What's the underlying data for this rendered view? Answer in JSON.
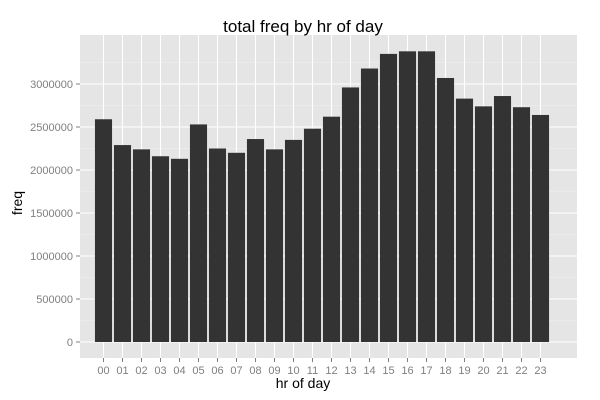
{
  "chart_data": {
    "type": "bar",
    "title": "total freq by hr of day",
    "xlabel": "hr of day",
    "ylabel": "freq",
    "categories": [
      "00",
      "01",
      "02",
      "03",
      "04",
      "05",
      "06",
      "07",
      "08",
      "09",
      "10",
      "11",
      "12",
      "13",
      "14",
      "15",
      "16",
      "17",
      "18",
      "19",
      "20",
      "21",
      "22",
      "23"
    ],
    "values": [
      2590000,
      2290000,
      2240000,
      2160000,
      2130000,
      2530000,
      2250000,
      2200000,
      2360000,
      2240000,
      2350000,
      2480000,
      2620000,
      2960000,
      3180000,
      3350000,
      3380000,
      3380000,
      3070000,
      2830000,
      2740000,
      2860000,
      2730000,
      2640000
    ],
    "ylim": [
      0,
      3450000
    ],
    "yticks": [
      0,
      500000,
      1000000,
      1500000,
      2000000,
      2500000,
      3000000
    ],
    "ytick_labels": [
      "0",
      "500000",
      "1000000",
      "1500000",
      "2000000",
      "2500000",
      "3000000"
    ],
    "grid": true,
    "colors": {
      "panel": "#e5e5e5",
      "grid_major": "#ffffff",
      "grid_minor": "#f2f2f2",
      "bar": "#333333",
      "tick_text": "#7f7f7f"
    }
  }
}
